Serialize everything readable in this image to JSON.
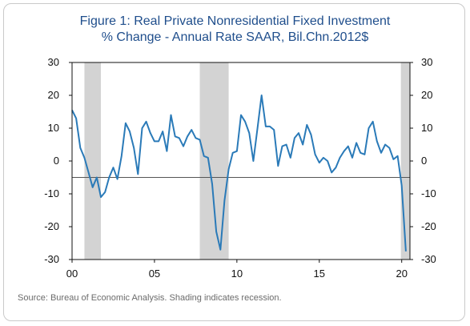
{
  "chart_data": {
    "type": "line",
    "title": "Figure 1: Real Private Nonresidential Fixed Investment",
    "subtitle": "% Change - Annual Rate  SAAR, Bil.Chn.2012$",
    "source": "Source: Bureau of Economic Analysis. Shading indicates recession.",
    "xlim": [
      2000,
      2020.5
    ],
    "ylim": [
      -30,
      30
    ],
    "x_ticks": [
      {
        "value": 2000,
        "label": "00"
      },
      {
        "value": 2005,
        "label": "05"
      },
      {
        "value": 2010,
        "label": "10"
      },
      {
        "value": 2015,
        "label": "15"
      },
      {
        "value": 2020,
        "label": "20"
      }
    ],
    "y_ticks": [
      30,
      20,
      10,
      0,
      -10,
      -20,
      -30
    ],
    "reference_line": -5,
    "recessions": [
      [
        2000.75,
        2001.75
      ],
      [
        2007.75,
        2009.5
      ],
      [
        2019.95,
        2020.5
      ]
    ],
    "line_color": "#2a7ab8",
    "recession_color": "#d3d3d3",
    "series": [
      {
        "x": [
          2000.0,
          2000.25,
          2000.5,
          2000.75,
          2001.0,
          2001.25,
          2001.5,
          2001.75,
          2002.0,
          2002.25,
          2002.5,
          2002.75,
          2003.0,
          2003.25,
          2003.5,
          2003.75,
          2004.0,
          2004.25,
          2004.5,
          2004.75,
          2005.0,
          2005.25,
          2005.5,
          2005.75,
          2006.0,
          2006.25,
          2006.5,
          2006.75,
          2007.0,
          2007.25,
          2007.5,
          2007.75,
          2008.0,
          2008.25,
          2008.5,
          2008.75,
          2009.0,
          2009.25,
          2009.5,
          2009.75,
          2010.0,
          2010.25,
          2010.5,
          2010.75,
          2011.0,
          2011.25,
          2011.5,
          2011.75,
          2012.0,
          2012.25,
          2012.5,
          2012.75,
          2013.0,
          2013.25,
          2013.5,
          2013.75,
          2014.0,
          2014.25,
          2014.5,
          2014.75,
          2015.0,
          2015.25,
          2015.5,
          2015.75,
          2016.0,
          2016.25,
          2016.5,
          2016.75,
          2017.0,
          2017.25,
          2017.5,
          2017.75,
          2018.0,
          2018.25,
          2018.5,
          2018.75,
          2019.0,
          2019.25,
          2019.5,
          2019.75,
          2020.0,
          2020.25
        ],
        "y": [
          15.5,
          13,
          4,
          1,
          -3.5,
          -8,
          -5,
          -11,
          -9.5,
          -5,
          -2,
          -5.5,
          1.5,
          11.5,
          9,
          4,
          -4,
          10,
          12,
          8.5,
          6,
          6,
          9,
          3,
          14,
          7.5,
          7,
          4.5,
          7.5,
          9.5,
          7,
          6.5,
          1.5,
          1,
          -7,
          -21.5,
          -27,
          -12,
          -2.5,
          2.5,
          3,
          14,
          12,
          8.5,
          0,
          10,
          20,
          10.5,
          10.5,
          9.5,
          -1.5,
          4.5,
          5,
          1,
          7,
          8.5,
          5,
          11,
          8,
          2,
          -0.5,
          1,
          0,
          -3.5,
          -2,
          1,
          3,
          4.5,
          1,
          5.5,
          2.5,
          2,
          10,
          12,
          6,
          2.5,
          5,
          4,
          0.5,
          1.5,
          -7.5,
          -27.5
        ]
      }
    ]
  }
}
